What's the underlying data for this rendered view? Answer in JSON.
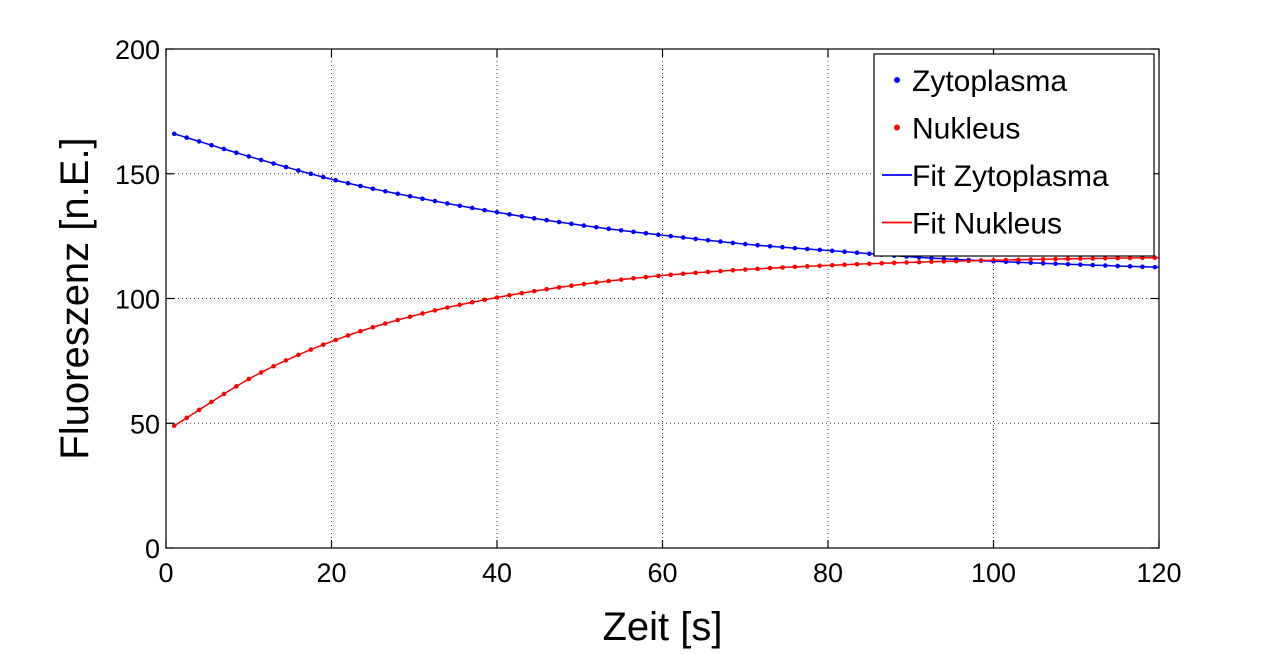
{
  "chart_data": {
    "type": "scatter",
    "title": "",
    "xlabel": "Zeit [s]",
    "ylabel": "Fluoreszenz [n.E.]",
    "xlim": [
      0,
      120
    ],
    "ylim": [
      0,
      200
    ],
    "xticks": [
      0,
      20,
      40,
      60,
      80,
      100,
      120
    ],
    "yticks": [
      0,
      50,
      100,
      150,
      200
    ],
    "grid": true,
    "legend_position": "top-right",
    "series": [
      {
        "name": "Zytoplasma",
        "kind": "points",
        "color": "#0000ff",
        "x": [
          1,
          11,
          21,
          31,
          41,
          51,
          61,
          71,
          81,
          91,
          101,
          111,
          120
        ],
        "y": [
          166,
          156,
          147,
          140,
          134,
          129,
          125,
          121.5,
          119,
          116.5,
          114.8,
          113.5,
          112.5
        ]
      },
      {
        "name": "Nukleus",
        "kind": "points",
        "color": "#ff0000",
        "x": [
          1,
          11,
          21,
          31,
          41,
          51,
          61,
          71,
          81,
          91,
          101,
          111,
          120
        ],
        "y": [
          49,
          69.5,
          84,
          94,
          101,
          106,
          109.5,
          111.8,
          113.4,
          114.6,
          115.4,
          116,
          116.4
        ]
      },
      {
        "name": "Fit Zytoplasma",
        "kind": "line",
        "color": "#0000ff",
        "x": [
          1,
          11,
          21,
          31,
          41,
          51,
          61,
          71,
          81,
          91,
          101,
          111,
          120
        ],
        "y": [
          166,
          156,
          147,
          140,
          134,
          129,
          125,
          121.5,
          119,
          116.5,
          114.8,
          113.5,
          112.5
        ]
      },
      {
        "name": "Fit Nukleus",
        "kind": "line",
        "color": "#ff0000",
        "x": [
          1,
          11,
          21,
          31,
          41,
          51,
          61,
          71,
          81,
          91,
          101,
          111,
          120
        ],
        "y": [
          49,
          69.5,
          84,
          94,
          101,
          106,
          109.5,
          111.8,
          113.4,
          114.6,
          115.4,
          116,
          116.4
        ]
      }
    ]
  }
}
